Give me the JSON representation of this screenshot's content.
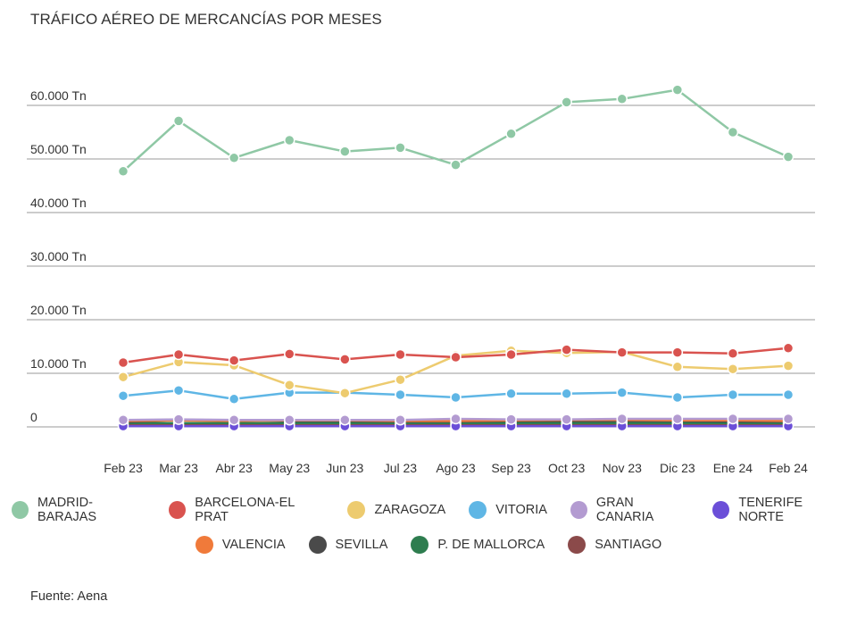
{
  "title": "TRÁFICO AÉREO DE MERCANCÍAS POR MESES",
  "source": "Fuente: Aena",
  "chart_data": {
    "type": "line",
    "title": "TRÁFICO AÉREO DE MERCANCÍAS POR MESES",
    "xlabel": "",
    "ylabel": "",
    "categories": [
      "Feb 23",
      "Mar 23",
      "Abr 23",
      "May 23",
      "Jun 23",
      "Jul 23",
      "Ago 23",
      "Sep 23",
      "Oct 23",
      "Nov 23",
      "Dic 23",
      "Ene 24",
      "Feb 24"
    ],
    "y_ticks": [
      {
        "value": 0,
        "label": "0"
      },
      {
        "value": 10000,
        "label": "10.000 Tn"
      },
      {
        "value": 20000,
        "label": "20.000 Tn"
      },
      {
        "value": 30000,
        "label": "30.000 Tn"
      },
      {
        "value": 40000,
        "label": "40.000 Tn"
      },
      {
        "value": 50000,
        "label": "50.000 Tn"
      },
      {
        "value": 60000,
        "label": "60.000 Tn"
      }
    ],
    "ylim": [
      0,
      60000
    ],
    "grid": true,
    "legend_position": "bottom",
    "series": [
      {
        "name": "MADRID-BARAJAS",
        "color": "#8fc8a5",
        "values": [
          47700,
          57100,
          50200,
          53500,
          51400,
          52100,
          48900,
          54700,
          60600,
          61200,
          62900,
          55000,
          50400
        ]
      },
      {
        "name": "BARCELONA-EL PRAT",
        "color": "#d9534f",
        "values": [
          12000,
          13500,
          12400,
          13600,
          12600,
          13500,
          13000,
          13500,
          14400,
          13900,
          13900,
          13700,
          14700
        ]
      },
      {
        "name": "ZARAGOZA",
        "color": "#edcb6f",
        "values": [
          9300,
          12100,
          11500,
          7800,
          6300,
          8800,
          13300,
          14200,
          13800,
          14000,
          11200,
          10800,
          11400
        ]
      },
      {
        "name": "VITORIA",
        "color": "#5fb6e5",
        "values": [
          5800,
          6800,
          5200,
          6400,
          6400,
          6000,
          5500,
          6200,
          6200,
          6400,
          5500,
          6000,
          6000
        ]
      },
      {
        "name": "GRAN CANARIA",
        "color": "#b39bd1",
        "values": [
          1300,
          1400,
          1300,
          1300,
          1300,
          1300,
          1500,
          1400,
          1400,
          1500,
          1500,
          1500,
          1500
        ]
      },
      {
        "name": "TENERIFE NORTE",
        "color": "#6b4fd8",
        "values": [
          150,
          150,
          150,
          150,
          150,
          150,
          150,
          150,
          150,
          150,
          150,
          150,
          150
        ]
      },
      {
        "name": "VALENCIA",
        "color": "#f07a3a",
        "values": [
          1100,
          1200,
          1100,
          1200,
          1200,
          1100,
          1100,
          1200,
          1300,
          1300,
          1200,
          1200,
          1100
        ]
      },
      {
        "name": "SEVILLA",
        "color": "#4a4a4a",
        "values": [
          900,
          1300,
          1300,
          1100,
          1100,
          1000,
          1000,
          1100,
          1100,
          1100,
          1100,
          1000,
          1000
        ]
      },
      {
        "name": "P. DE MALLORCA",
        "color": "#2e7d4f",
        "values": [
          700,
          700,
          700,
          700,
          700,
          700,
          700,
          700,
          700,
          700,
          700,
          700,
          700
        ]
      },
      {
        "name": "SANTIAGO",
        "color": "#8b4a4a",
        "values": [
          400,
          400,
          400,
          400,
          400,
          400,
          400,
          400,
          400,
          400,
          400,
          400,
          400
        ]
      }
    ]
  },
  "legend_rows": [
    [
      0,
      1,
      2,
      3,
      4,
      5
    ],
    [
      6,
      7,
      8,
      9
    ]
  ]
}
